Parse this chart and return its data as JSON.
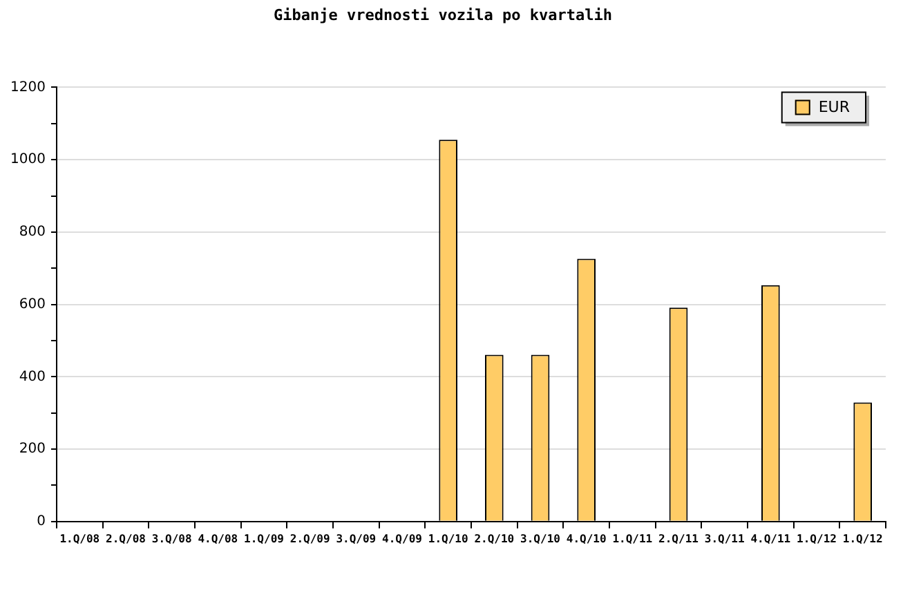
{
  "chart_data": {
    "type": "bar",
    "title": "Gibanje vrednosti vozila po kvartalih",
    "categories": [
      "1.Q/08",
      "2.Q/08",
      "3.Q/08",
      "4.Q/08",
      "1.Q/09",
      "2.Q/09",
      "3.Q/09",
      "4.Q/09",
      "1.Q/10",
      "2.Q/10",
      "3.Q/10",
      "4.Q/10",
      "1.Q/11",
      "2.Q/11",
      "3.Q/11",
      "4.Q/11",
      "1.Q/12",
      "1.Q/12"
    ],
    "series": [
      {
        "name": "EUR",
        "color": "#ffcc66",
        "values": [
          null,
          null,
          null,
          null,
          null,
          null,
          null,
          null,
          1055,
          461,
          461,
          726,
          null,
          591,
          null,
          653,
          null,
          329
        ]
      }
    ],
    "ylim": [
      0,
      1200
    ],
    "yticks": [
      0,
      {
        "value": 100,
        "label": null
      },
      200,
      {
        "value": 300,
        "label": null
      },
      400,
      {
        "value": 500,
        "label": null
      },
      600,
      {
        "value": 700,
        "label": null
      },
      800,
      {
        "value": 900,
        "label": null
      },
      1000,
      {
        "value": 1100,
        "label": null
      },
      1200
    ],
    "grid": "y",
    "legend": "top right"
  }
}
